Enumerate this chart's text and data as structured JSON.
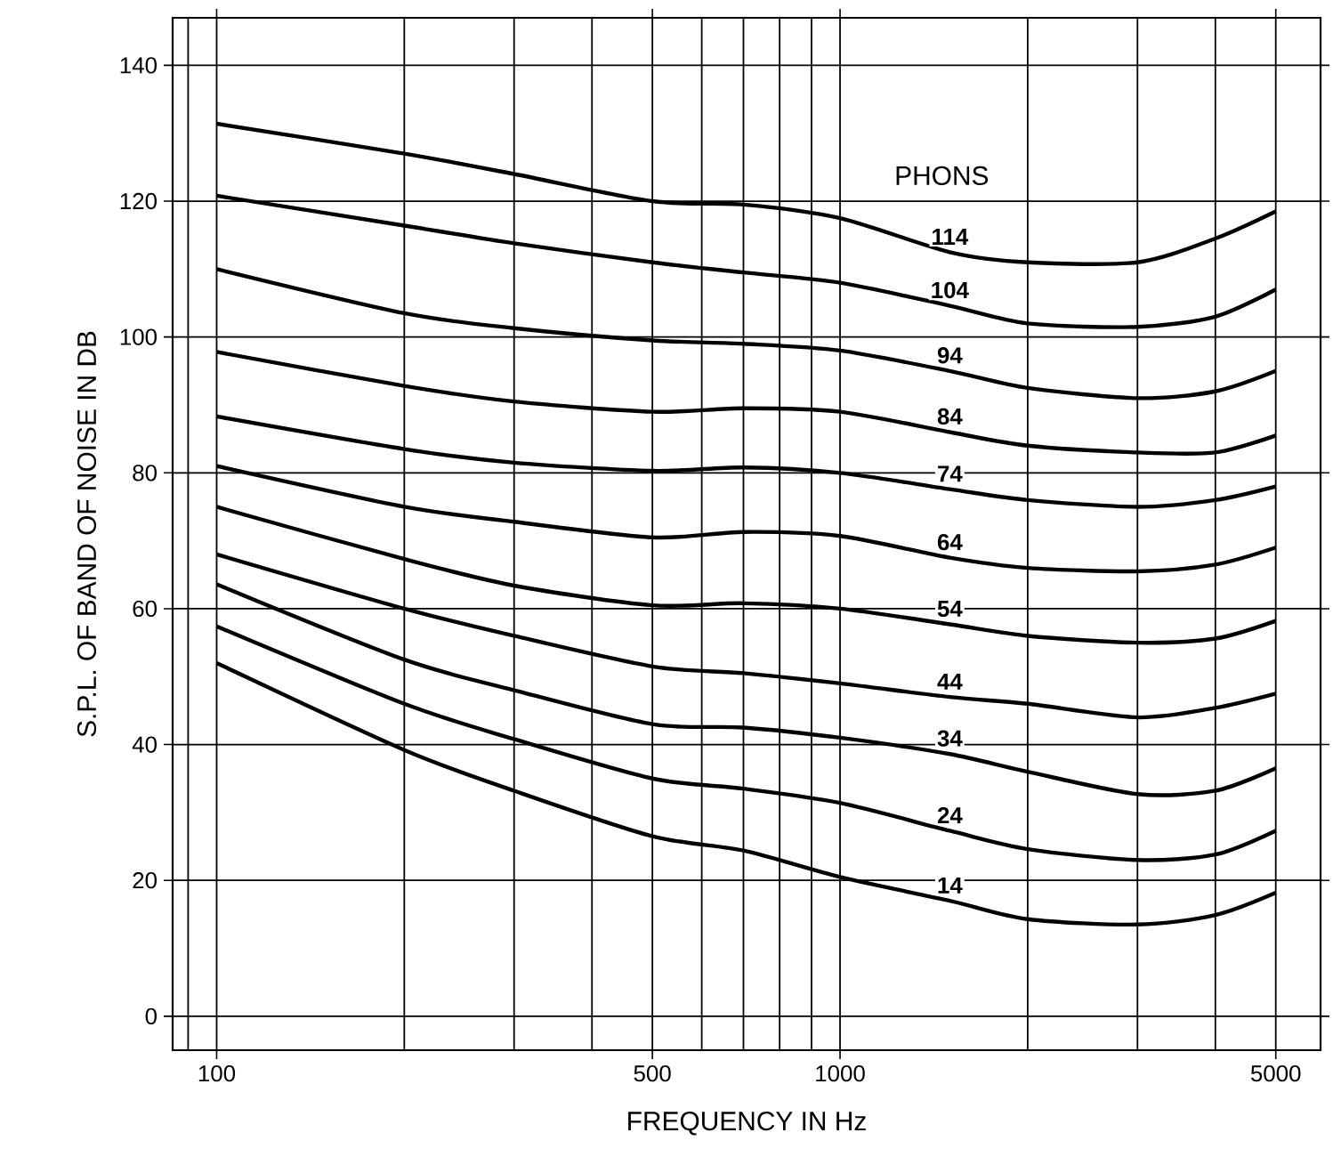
{
  "chart_data": {
    "type": "line",
    "xlabel": "FREQUENCY IN Hz",
    "ylabel": "S.P.L. OF BAND OF NOISE IN DB",
    "legend_title": "PHONS",
    "log": "x",
    "grid": true,
    "marker": "none",
    "line_style": "solid",
    "xlim": [
      85,
      5900
    ],
    "ylim": [
      -5,
      147
    ],
    "xticks": [
      100,
      500,
      1000,
      5000
    ],
    "yticks": [
      0,
      20,
      40,
      60,
      80,
      100,
      120,
      140
    ],
    "x": [
      100,
      200,
      300,
      500,
      700,
      1000,
      1500,
      2000,
      3000,
      4000,
      5000
    ],
    "series": [
      {
        "name": "114",
        "color": "#000000",
        "values": [
          131.4,
          127,
          124,
          120,
          119.5,
          117.5,
          112.5,
          111,
          111,
          114.5,
          118.5
        ]
      },
      {
        "name": "104",
        "color": "#000000",
        "values": [
          120.8,
          116.4,
          113.8,
          111,
          109.5,
          108,
          104.6,
          102,
          101.5,
          103,
          107
        ]
      },
      {
        "name": "94",
        "color": "#000000",
        "values": [
          110,
          103.5,
          101.3,
          99.5,
          99,
          98,
          95,
          92.5,
          91,
          92,
          95
        ]
      },
      {
        "name": "84",
        "color": "#000000",
        "values": [
          97.8,
          92.8,
          90.5,
          89,
          89.5,
          89,
          86,
          84,
          83,
          83,
          85.5
        ]
      },
      {
        "name": "74",
        "color": "#000000",
        "values": [
          88.3,
          83.5,
          81.5,
          80.3,
          80.8,
          80,
          77.6,
          76,
          75,
          76,
          78
        ]
      },
      {
        "name": "64",
        "color": "#000000",
        "values": [
          81,
          75,
          72.8,
          70.5,
          71.3,
          70.7,
          67.5,
          66,
          65.5,
          66.5,
          69
        ]
      },
      {
        "name": "54",
        "color": "#000000",
        "values": [
          75,
          67.3,
          63.4,
          60.5,
          60.8,
          60,
          57.7,
          56,
          55,
          55.6,
          58.2
        ]
      },
      {
        "name": "44",
        "color": "#000000",
        "values": [
          68,
          60,
          56,
          51.5,
          50.5,
          49,
          47,
          46,
          44,
          45.4,
          47.5
        ]
      },
      {
        "name": "34",
        "color": "#000000",
        "values": [
          63.6,
          52.5,
          48,
          43,
          42.5,
          41,
          38.6,
          36,
          32.7,
          33.2,
          36.5
        ]
      },
      {
        "name": "24",
        "color": "#000000",
        "values": [
          57.4,
          46,
          40.8,
          35,
          33.5,
          31.4,
          27.3,
          24.6,
          23,
          23.8,
          27.3
        ]
      },
      {
        "name": "14",
        "color": "#000000",
        "values": [
          52,
          39.2,
          33.2,
          26.5,
          24.4,
          20.5,
          17,
          14.3,
          13.5,
          14.9,
          18.2
        ]
      }
    ]
  }
}
